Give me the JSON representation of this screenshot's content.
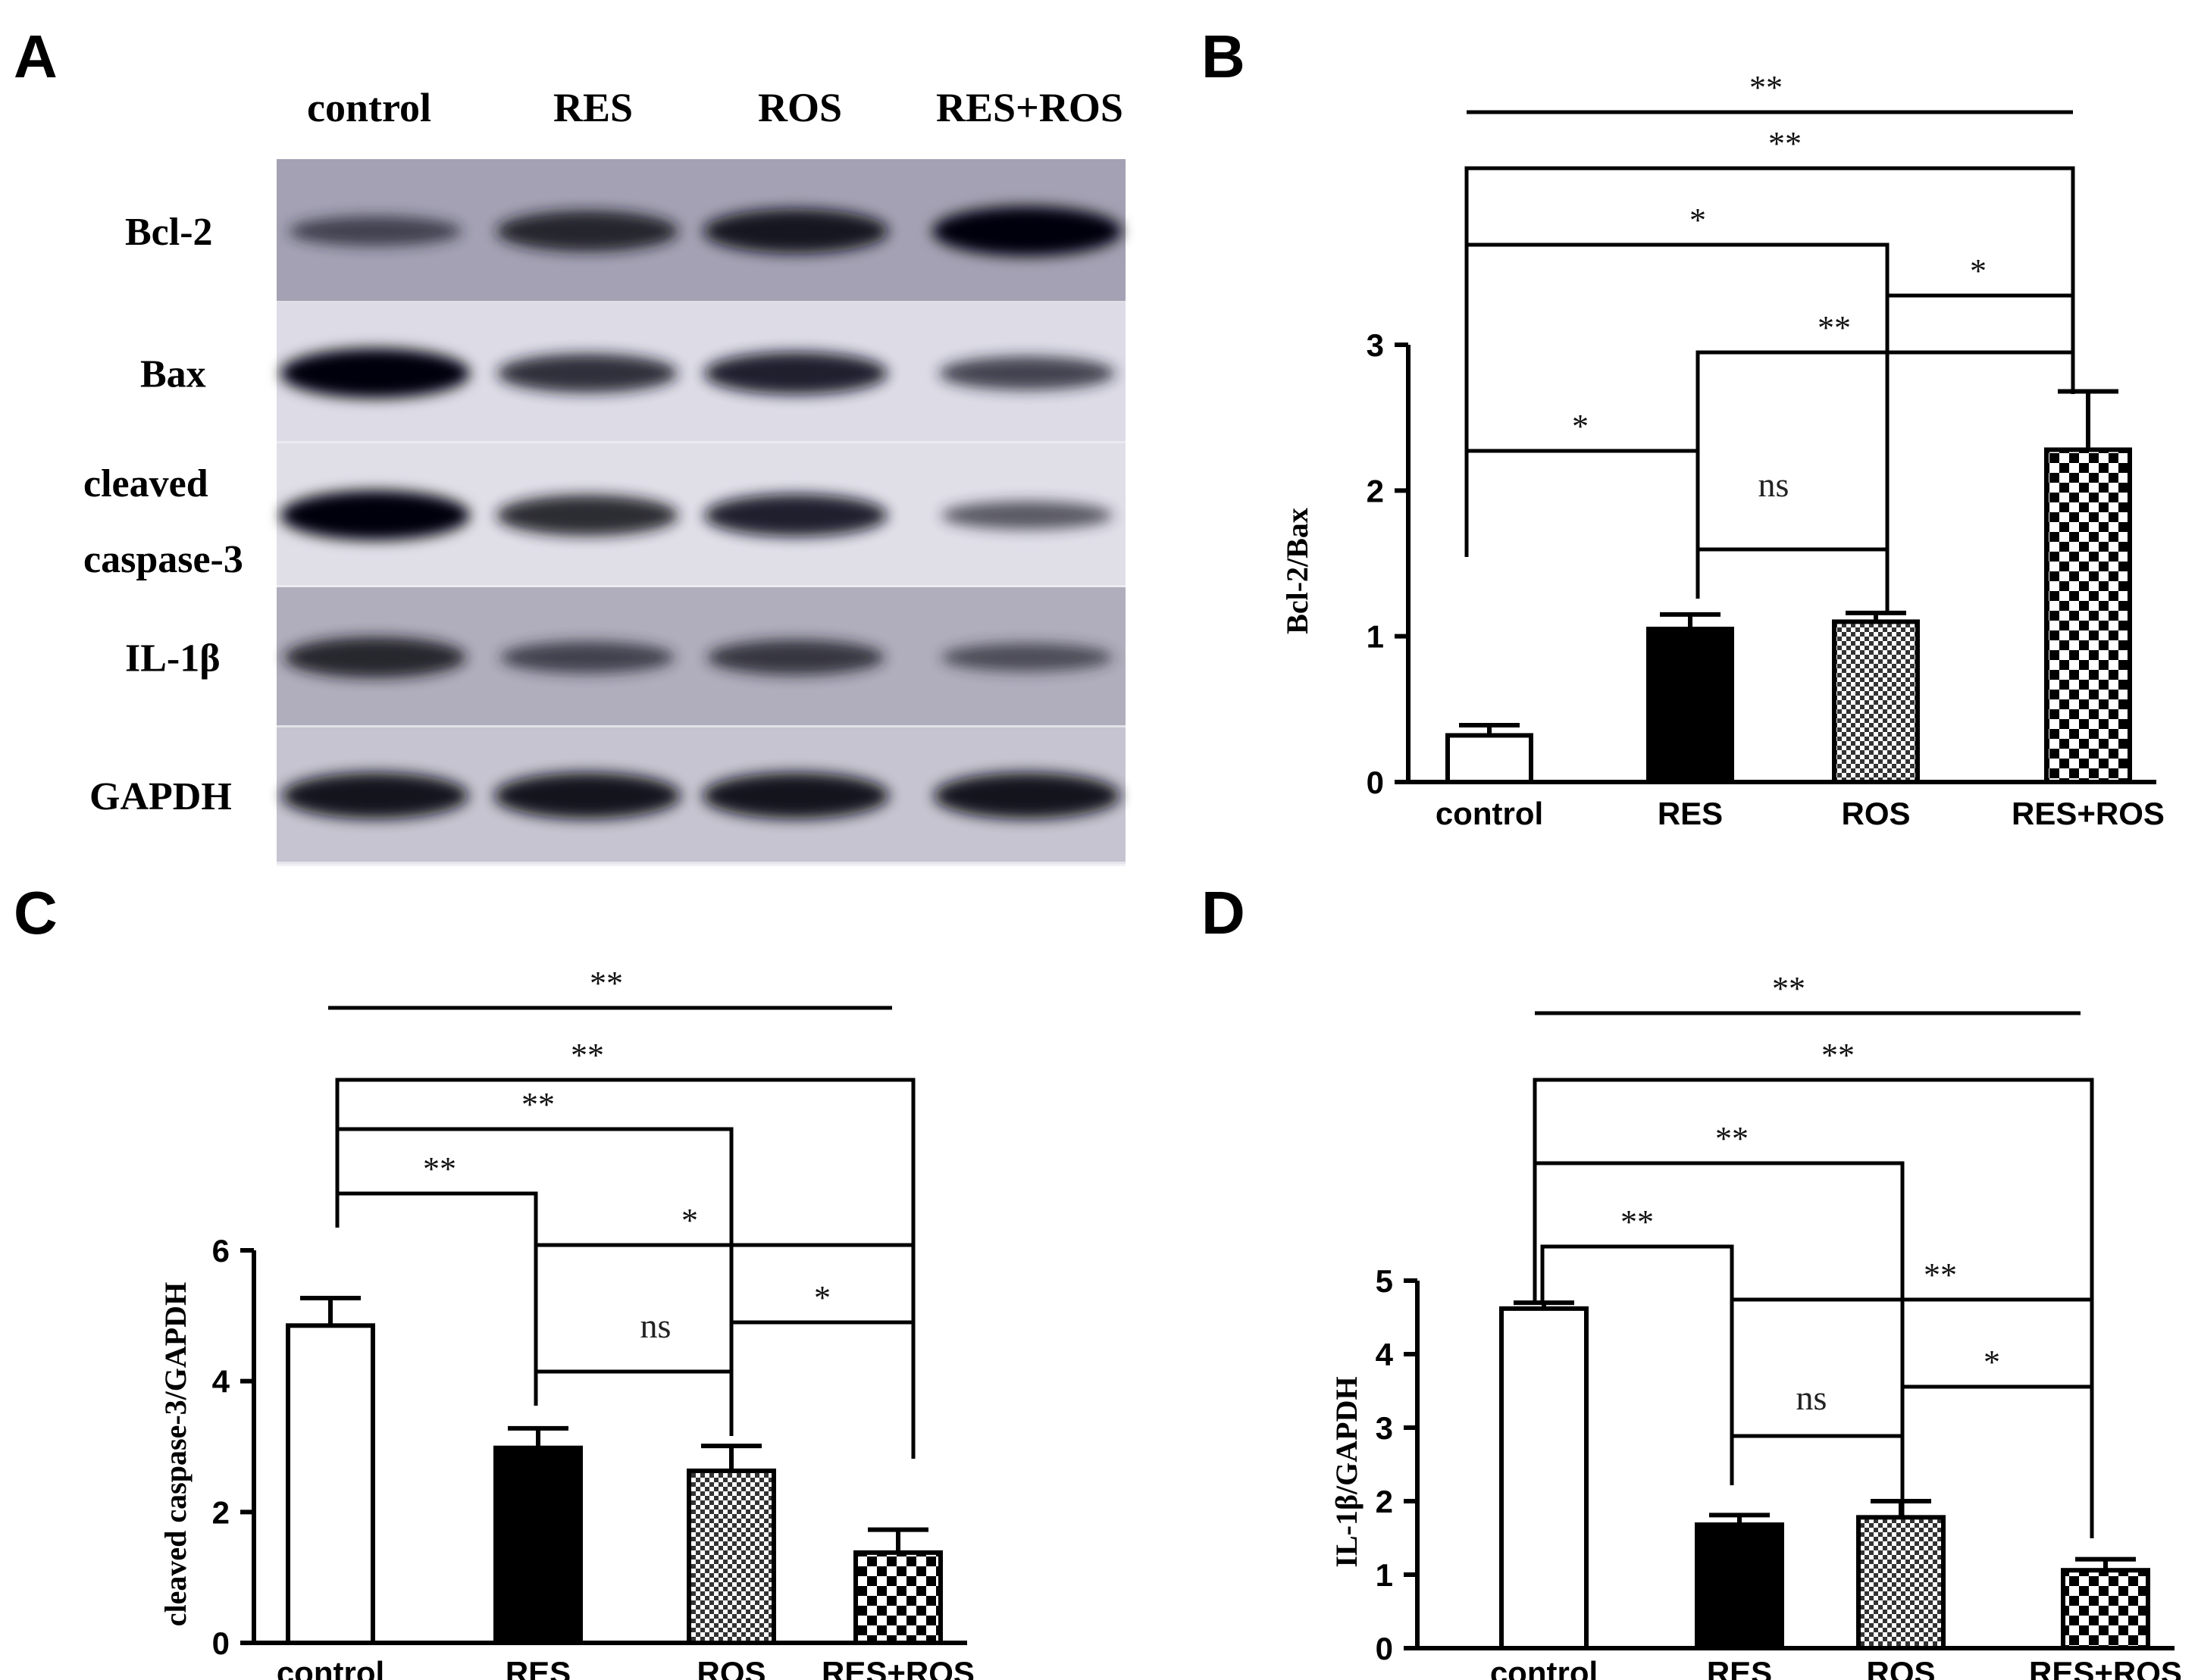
{
  "panels": {
    "A": "A",
    "B": "B",
    "C": "C",
    "D": "D"
  },
  "blot": {
    "lanes": [
      "control",
      "RES",
      "ROS",
      "RES+ROS"
    ],
    "rows": [
      {
        "label": [
          "Bcl-2"
        ],
        "intensity": [
          0.45,
          0.75,
          0.85,
          1.0
        ]
      },
      {
        "label": [
          "Bax"
        ],
        "intensity": [
          1.0,
          0.7,
          0.8,
          0.55
        ]
      },
      {
        "label": [
          "cleaved",
          "caspase-3"
        ],
        "intensity": [
          1.0,
          0.75,
          0.8,
          0.4
        ]
      },
      {
        "label": [
          "IL-1β"
        ],
        "intensity": [
          0.75,
          0.5,
          0.6,
          0.4
        ]
      },
      {
        "label": [
          "GAPDH"
        ],
        "intensity": [
          0.9,
          0.9,
          0.9,
          0.9
        ]
      }
    ]
  },
  "chart_data": [
    {
      "panel": "B",
      "type": "bar",
      "categories": [
        "control",
        "RES",
        "ROS",
        "RES+ROS"
      ],
      "values": [
        0.32,
        1.05,
        1.1,
        2.28
      ],
      "errors": [
        0.07,
        0.1,
        0.06,
        0.4
      ],
      "ylabel": "Bcl-2/Bax",
      "ylim": [
        0,
        3
      ],
      "yticks": [
        0,
        1,
        2,
        3
      ],
      "fills": [
        "white",
        "black",
        "fine-checker",
        "coarse-checker"
      ],
      "comparisons": [
        {
          "from": "control",
          "to": "RES+ROS",
          "label": "**",
          "style": "line"
        },
        {
          "from": "control",
          "to": "RES+ROS",
          "label": "**",
          "style": "bracket"
        },
        {
          "from": "control",
          "to": "ROS",
          "label": "*",
          "style": "bracket"
        },
        {
          "from": "ROS",
          "to": "RES+ROS",
          "label": "*",
          "style": "bracket"
        },
        {
          "from": "RES",
          "to": "RES+ROS",
          "label": "**",
          "style": "bracket"
        },
        {
          "from": "control",
          "to": "RES",
          "label": "*",
          "style": "bracket"
        },
        {
          "from": "RES",
          "to": "ROS",
          "label": "ns",
          "style": "bracket"
        }
      ]
    },
    {
      "panel": "C",
      "type": "bar",
      "categories": [
        "control",
        "RES",
        "ROS",
        "RES+ROS"
      ],
      "values": [
        4.85,
        2.98,
        2.63,
        1.38
      ],
      "errors": [
        0.42,
        0.3,
        0.38,
        0.35
      ],
      "ylabel": "cleaved caspase-3/GAPDH",
      "ylim": [
        0,
        6
      ],
      "yticks": [
        0,
        2,
        4,
        6
      ],
      "fills": [
        "white",
        "black",
        "fine-checker",
        "coarse-checker"
      ],
      "comparisons": [
        {
          "from": "control",
          "to": "ROS",
          "label": "**",
          "style": "line"
        },
        {
          "from": "control",
          "to": "RES+ROS",
          "label": "**",
          "style": "bracket"
        },
        {
          "from": "control",
          "to": "ROS",
          "label": "**",
          "style": "bracket"
        },
        {
          "from": "control",
          "to": "RES",
          "label": "**",
          "style": "bracket"
        },
        {
          "from": "RES",
          "to": "RES+ROS",
          "label": "*",
          "style": "bracket"
        },
        {
          "from": "ROS",
          "to": "RES+ROS",
          "label": "*",
          "style": "bracket"
        },
        {
          "from": "RES",
          "to": "ROS",
          "label": "ns",
          "style": "bracket"
        }
      ]
    },
    {
      "panel": "D",
      "type": "bar",
      "categories": [
        "control",
        "RES",
        "ROS",
        "RES+ROS"
      ],
      "values": [
        4.62,
        1.68,
        1.78,
        1.06
      ],
      "errors": [
        0.08,
        0.13,
        0.22,
        0.15
      ],
      "ylabel": "IL-1β/GAPDH",
      "ylim": [
        0,
        5
      ],
      "yticks": [
        0,
        1,
        2,
        3,
        4,
        5
      ],
      "fills": [
        "white",
        "black",
        "fine-checker",
        "coarse-checker"
      ],
      "comparisons": [
        {
          "from": "control",
          "to": "RES+ROS",
          "label": "**",
          "style": "line"
        },
        {
          "from": "control",
          "to": "RES+ROS",
          "label": "**",
          "style": "bracket"
        },
        {
          "from": "control",
          "to": "ROS",
          "label": "**",
          "style": "bracket"
        },
        {
          "from": "control",
          "to": "RES",
          "label": "**",
          "style": "bracket"
        },
        {
          "from": "RES",
          "to": "RES+ROS",
          "label": "**",
          "style": "bracket"
        },
        {
          "from": "ROS",
          "to": "RES+ROS",
          "label": "*",
          "style": "bracket"
        },
        {
          "from": "RES",
          "to": "ROS",
          "label": "ns",
          "style": "bracket"
        }
      ]
    }
  ]
}
